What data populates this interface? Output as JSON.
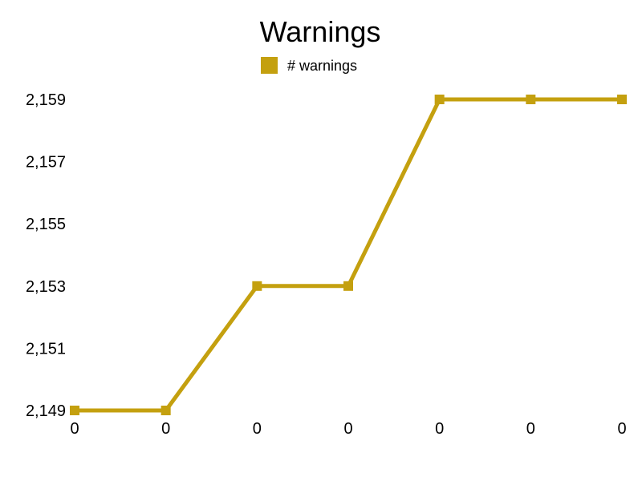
{
  "chart_data": {
    "type": "line",
    "title": "Warnings",
    "xlabel": "",
    "ylabel": "",
    "categories": [
      "0",
      "0",
      "0",
      "0",
      "0",
      "0",
      "0"
    ],
    "series": [
      {
        "name": "# warnings",
        "values": [
          2149,
          2149,
          2153,
          2153,
          2159,
          2159,
          2159
        ]
      }
    ],
    "y_ticks": [
      "2,149",
      "2,151",
      "2,153",
      "2,155",
      "2,157",
      "2,159"
    ],
    "y_tick_values": [
      2149,
      2151,
      2153,
      2155,
      2157,
      2159
    ],
    "ylim": [
      2149,
      2159
    ],
    "grid": false,
    "legend_position": "top-center",
    "colors": {
      "series": "#c4a00f"
    }
  }
}
